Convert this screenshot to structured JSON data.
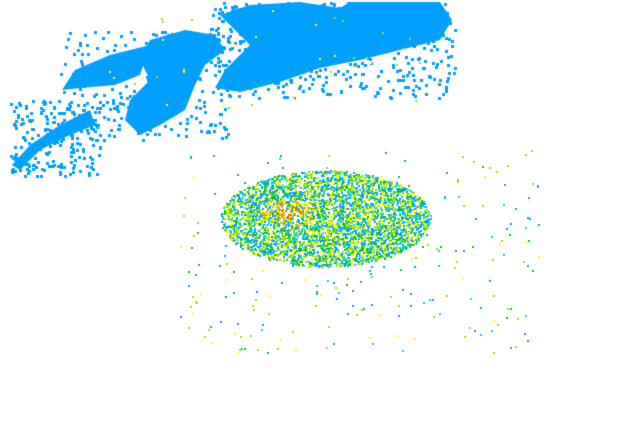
{
  "radar": {
    "background": "#ffffff",
    "palette": {
      "light_blue": "#00a0ff",
      "blue_shade": "#1e90ff",
      "cyan": "#00d8e8",
      "green": "#00c800",
      "lime": "#a0e000",
      "yellow": "#ffff00",
      "orange": "#ffa000",
      "red_orange": "#ff6000"
    }
  }
}
